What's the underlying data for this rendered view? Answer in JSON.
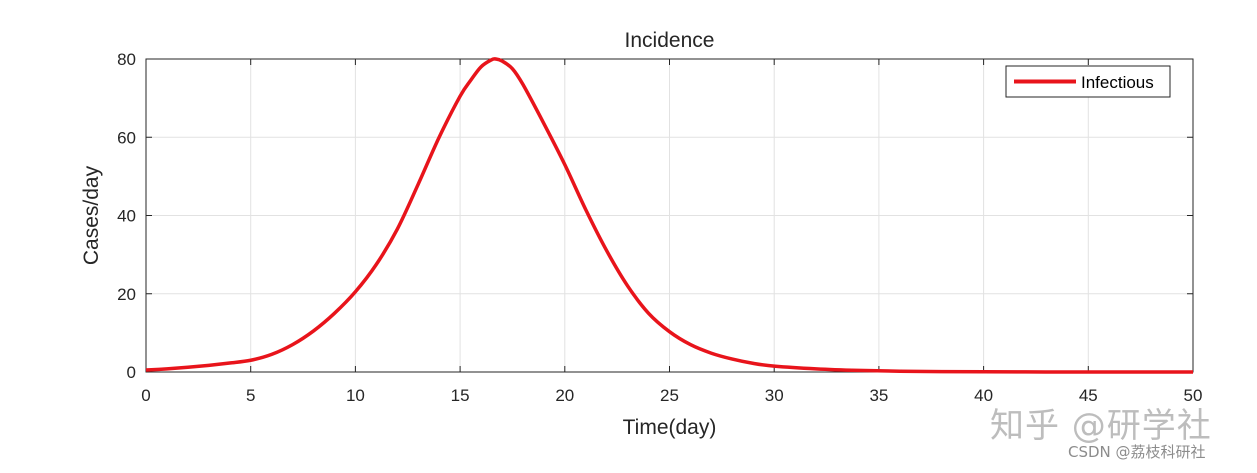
{
  "chart_data": {
    "type": "line",
    "title": "Incidence",
    "xlabel": "Time(day)",
    "ylabel": "Cases/day",
    "xlim": [
      0,
      50
    ],
    "ylim": [
      0,
      80
    ],
    "xticks": [
      0,
      5,
      10,
      15,
      20,
      25,
      30,
      35,
      40,
      45,
      50
    ],
    "yticks": [
      0,
      20,
      40,
      60,
      80
    ],
    "grid": true,
    "legend_position": "top-right",
    "series": [
      {
        "name": "Infectious",
        "color": "#e8141b",
        "x": [
          0,
          1,
          2,
          3,
          4,
          5,
          6,
          7,
          8,
          9,
          10,
          11,
          12,
          13,
          14,
          15,
          15.5,
          16,
          16.5,
          16.7,
          17,
          17.5,
          18,
          19,
          20,
          21,
          22,
          23,
          24,
          25,
          26,
          27,
          28,
          29,
          30,
          32,
          34,
          36,
          38,
          40,
          42,
          44,
          46,
          48,
          50
        ],
        "y": [
          0.5,
          0.8,
          1.2,
          1.7,
          2.3,
          3.0,
          4.5,
          7.0,
          10.5,
          15.0,
          20.5,
          27.5,
          36.5,
          48.0,
          60.0,
          70.5,
          74.5,
          78.0,
          79.8,
          80.0,
          79.5,
          77.5,
          73.5,
          63.5,
          53.0,
          41.5,
          31.0,
          22.0,
          15.0,
          10.3,
          7.0,
          4.8,
          3.3,
          2.2,
          1.5,
          0.8,
          0.4,
          0.2,
          0.1,
          0.05,
          0.02,
          0.01,
          0.0,
          0.0,
          0.0
        ]
      }
    ]
  },
  "watermark": {
    "main": "知乎 @研学社",
    "sub": "CSDN @荔枝科研社"
  }
}
